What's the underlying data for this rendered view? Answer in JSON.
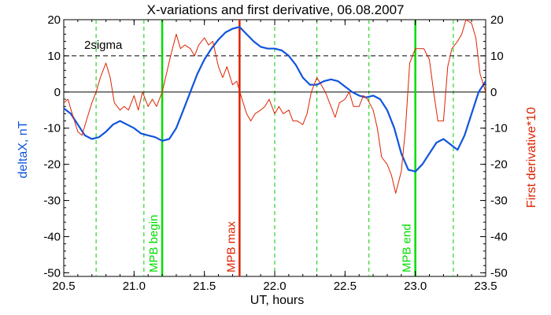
{
  "chart_data": {
    "type": "line",
    "title": "X-variations and first derivative, 06.08.2007",
    "xlabel": "UT, hours",
    "ylabel_left": "deltaX, nT",
    "ylabel_right": "First derivative*10",
    "xlim": [
      20.5,
      23.5
    ],
    "ylim": [
      -51,
      20
    ],
    "x_ticks": [
      "20.5",
      "21.0",
      "21.5",
      "22.0",
      "22.5",
      "23.0",
      "23.5"
    ],
    "y_ticks_left": [
      "20",
      "10",
      "0",
      "-10",
      "-20",
      "-30",
      "-40",
      "-50"
    ],
    "y_ticks_right": [
      "20",
      "10",
      "0",
      "-10",
      "-20",
      "-30",
      "-40",
      "-50"
    ],
    "colors": {
      "deltax": "#1155dd",
      "derivative": "#dd2200",
      "mpb_max": "#dd2200",
      "mpb_bounds": "#00dd00",
      "guides": "#00cc00"
    },
    "series": [
      {
        "key": "deltax",
        "x": [
          20.5,
          20.55,
          20.6,
          20.65,
          20.7,
          20.75,
          20.8,
          20.85,
          20.9,
          20.95,
          21.0,
          21.05,
          21.1,
          21.15,
          21.2,
          21.25,
          21.3,
          21.35,
          21.4,
          21.45,
          21.5,
          21.55,
          21.6,
          21.65,
          21.7,
          21.75,
          21.8,
          21.85,
          21.9,
          21.95,
          22.0,
          22.05,
          22.1,
          22.15,
          22.2,
          22.25,
          22.3,
          22.35,
          22.4,
          22.45,
          22.5,
          22.55,
          22.6,
          22.65,
          22.7,
          22.75,
          22.8,
          22.85,
          22.9,
          22.95,
          23.0,
          23.05,
          23.1,
          23.15,
          23.2,
          23.25,
          23.3,
          23.35,
          23.4,
          23.45,
          23.5
        ],
        "values": [
          -4.5,
          -6,
          -9,
          -12,
          -13,
          -12.5,
          -11,
          -9,
          -8,
          -9,
          -10,
          -11.5,
          -12,
          -12.5,
          -13.5,
          -13,
          -10,
          -5,
          0,
          5,
          9,
          12,
          14.5,
          16.5,
          17.5,
          18,
          16,
          14,
          12.5,
          12,
          12,
          11.5,
          10,
          7.5,
          4,
          2,
          2,
          3,
          3.5,
          3,
          1.5,
          0,
          -1,
          -1.5,
          -1,
          -2,
          -5,
          -10,
          -17,
          -21.5,
          -22,
          -20,
          -17,
          -14,
          -13,
          -14.5,
          -16,
          -12,
          -6,
          0,
          3
        ]
      },
      {
        "key": "derivative",
        "x": [
          20.5,
          20.53,
          20.56,
          20.6,
          20.63,
          20.66,
          20.7,
          20.73,
          20.76,
          20.8,
          20.83,
          20.86,
          20.9,
          20.93,
          20.96,
          21.0,
          21.03,
          21.06,
          21.08,
          21.1,
          21.13,
          21.16,
          21.2,
          21.23,
          21.26,
          21.3,
          21.33,
          21.36,
          21.4,
          21.43,
          21.46,
          21.5,
          21.53,
          21.56,
          21.6,
          21.63,
          21.66,
          21.7,
          21.73,
          21.76,
          21.8,
          21.83,
          21.86,
          21.9,
          21.93,
          21.96,
          22.0,
          22.03,
          22.06,
          22.1,
          22.13,
          22.16,
          22.2,
          22.23,
          22.26,
          22.3,
          22.33,
          22.36,
          22.4,
          22.43,
          22.46,
          22.5,
          22.53,
          22.56,
          22.6,
          22.63,
          22.66,
          22.7,
          22.73,
          22.76,
          22.8,
          22.83,
          22.86,
          22.9,
          22.93,
          22.96,
          23.0,
          23.03,
          23.06,
          23.1,
          23.13,
          23.16,
          23.2,
          23.23,
          23.26,
          23.3,
          23.33,
          23.36,
          23.4,
          23.43,
          23.46,
          23.5
        ],
        "values": [
          -3,
          -2,
          -6,
          -11,
          -12,
          -8,
          -3,
          0,
          4,
          8,
          4,
          -3,
          -5,
          -4,
          -5,
          -1,
          -5,
          0,
          -2,
          -4,
          -2,
          -4,
          0,
          5,
          10,
          16,
          12,
          13,
          12,
          10,
          13,
          15,
          13,
          14,
          7,
          4,
          7,
          2,
          3,
          -1,
          -6,
          -8,
          -6,
          -5,
          -4,
          -2,
          -6,
          -4,
          -6,
          -5,
          -8,
          -8,
          -9,
          -6,
          0,
          4,
          2,
          0,
          -4,
          -7,
          -3,
          -2,
          0,
          -4,
          -4,
          -1,
          -2,
          -5,
          -10,
          -18,
          -20,
          -23,
          -28,
          -22,
          -10,
          8,
          12,
          12,
          12,
          9,
          0,
          -8,
          -8,
          7,
          12,
          14,
          16,
          20,
          19,
          15,
          5,
          0
        ]
      }
    ],
    "reference_lines": {
      "zero": 0,
      "two_sigma": {
        "value": 10,
        "label": "2sigma"
      }
    },
    "vertical_markers": [
      {
        "key": "mpb_begin",
        "x": 21.2,
        "label": "MPB begin",
        "style": "solid",
        "color": "green"
      },
      {
        "key": "mpb_max",
        "x": 21.75,
        "label": "MPB max",
        "style": "solid",
        "color": "red"
      },
      {
        "key": "mpb_end",
        "x": 23.0,
        "label": "MPB end",
        "style": "solid",
        "color": "green"
      }
    ],
    "guide_lines": [
      20.73,
      21.07,
      22.0,
      22.3,
      22.67,
      23.27
    ]
  }
}
